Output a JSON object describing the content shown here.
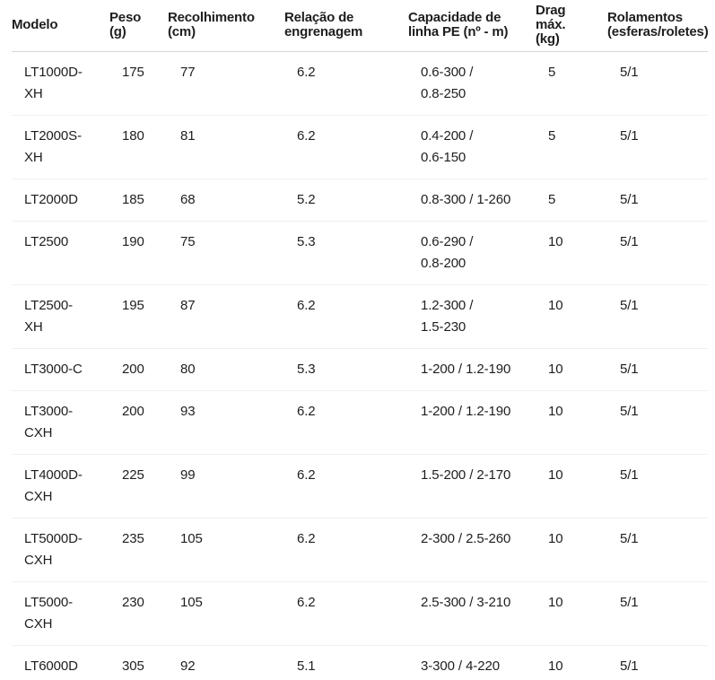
{
  "table": {
    "columns": [
      {
        "id": "modelo",
        "label": "Modelo"
      },
      {
        "id": "peso",
        "label": "Peso\n(g)"
      },
      {
        "id": "recolhimento",
        "label": "Recolhimento\n(cm)"
      },
      {
        "id": "relacao",
        "label": "Relação de\nengrenagem"
      },
      {
        "id": "capacidade",
        "label": "Capacidade de\nlinha PE (nº - m)"
      },
      {
        "id": "drag",
        "label": "Drag\nmáx.\n(kg)"
      },
      {
        "id": "rolamentos",
        "label": "Rolamentos\n(esferas/roletes)"
      }
    ],
    "rows": [
      [
        "LT1000D-\nXH",
        "175",
        "77",
        "6.2",
        "0.6-300 /\n0.8-250",
        "5",
        "5/1"
      ],
      [
        "LT2000S-\nXH",
        "180",
        "81",
        "6.2",
        "0.4-200 /\n0.6-150",
        "5",
        "5/1"
      ],
      [
        "LT2000D",
        "185",
        "68",
        "5.2",
        "0.8-300 / 1-260",
        "5",
        "5/1"
      ],
      [
        "LT2500",
        "190",
        "75",
        "5.3",
        "0.6-290 /\n0.8-200",
        "10",
        "5/1"
      ],
      [
        "LT2500-\nXH",
        "195",
        "87",
        "6.2",
        "1.2-300 /\n1.5-230",
        "10",
        "5/1"
      ],
      [
        "LT3000-C",
        "200",
        "80",
        "5.3",
        "1-200 / 1.2-190",
        "10",
        "5/1"
      ],
      [
        "LT3000-\nCXH",
        "200",
        "93",
        "6.2",
        "1-200 / 1.2-190",
        "10",
        "5/1"
      ],
      [
        "LT4000D-\nCXH",
        "225",
        "99",
        "6.2",
        "1.5-200 / 2-170",
        "10",
        "5/1"
      ],
      [
        "LT5000D-\nCXH",
        "235",
        "105",
        "6.2",
        "2-300 / 2.5-260",
        "10",
        "5/1"
      ],
      [
        "LT5000-\nCXH",
        "230",
        "105",
        "6.2",
        "2.5-300 / 3-210",
        "10",
        "5/1"
      ],
      [
        "LT6000D",
        "305",
        "92",
        "5.1",
        "3-300 / 4-220",
        "10",
        "5/1"
      ]
    ],
    "colors": {
      "text": "#1e1e1e",
      "header_border": "#d6d6d6",
      "row_border": "#f0f0f0",
      "background": "#ffffff"
    }
  }
}
